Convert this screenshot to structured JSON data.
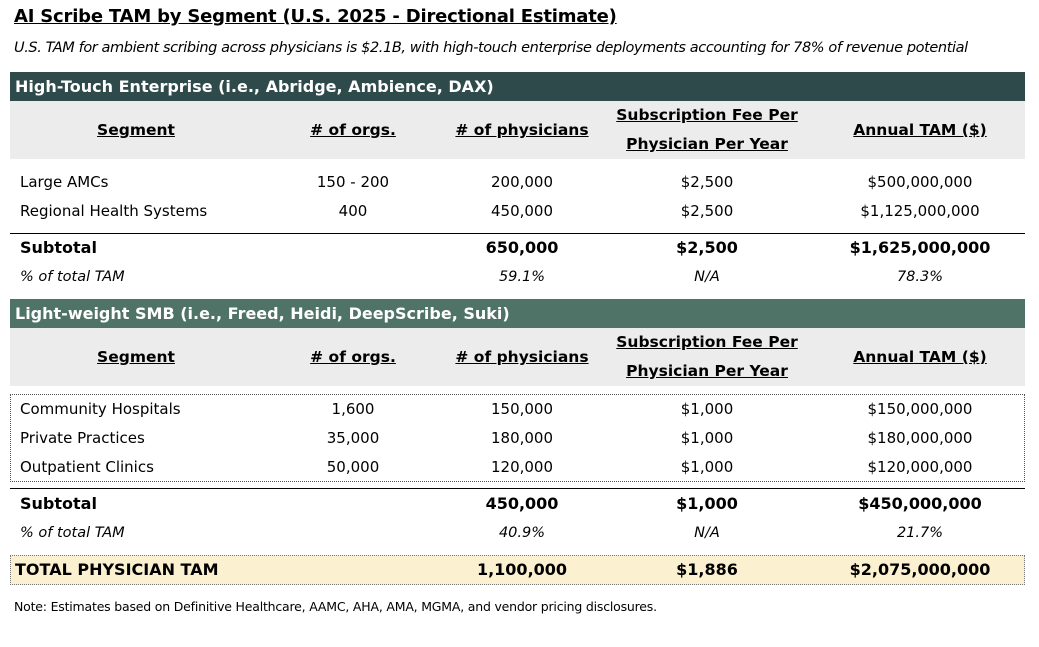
{
  "title": "AI Scribe TAM by Segment (U.S. 2025 - Directional Estimate)",
  "subtitle": "U.S. TAM for ambient scribing across physicians is $2.1B, with high-touch enterprise deployments accounting for 78% of revenue potential",
  "columns": {
    "segment": "Segment",
    "orgs": "# of orgs.",
    "physicians": "# of physicians",
    "fee_line1": "Subscription Fee Per",
    "fee_line2": "Physician Per Year",
    "tam": "Annual TAM ($)"
  },
  "enterprise": {
    "band": "High-Touch Enterprise (i.e., Abridge, Ambience, DAX)",
    "rows": [
      {
        "segment": "Large AMCs",
        "orgs": "150 - 200",
        "physicians": "200,000",
        "fee": "$2,500",
        "tam": "$500,000,000"
      },
      {
        "segment": "Regional Health Systems",
        "orgs": "400",
        "physicians": "450,000",
        "fee": "$2,500",
        "tam": "$1,125,000,000"
      }
    ],
    "subtotal": {
      "label": "Subtotal",
      "physicians": "650,000",
      "fee": "$2,500",
      "tam": "$1,625,000,000"
    },
    "pct": {
      "label": "% of total TAM",
      "physicians": "59.1%",
      "fee": "N/A",
      "tam": "78.3%"
    }
  },
  "smb": {
    "band": "Light-weight SMB (i.e., Freed, Heidi, DeepScribe, Suki)",
    "rows": [
      {
        "segment": "Community Hospitals",
        "orgs": "1,600",
        "physicians": "150,000",
        "fee": "$1,000",
        "tam": "$150,000,000"
      },
      {
        "segment": "Private Practices",
        "orgs": "35,000",
        "physicians": "180,000",
        "fee": "$1,000",
        "tam": "$180,000,000"
      },
      {
        "segment": "Outpatient Clinics",
        "orgs": "50,000",
        "physicians": "120,000",
        "fee": "$1,000",
        "tam": "$120,000,000"
      }
    ],
    "subtotal": {
      "label": "Subtotal",
      "physicians": "450,000",
      "fee": "$1,000",
      "tam": "$450,000,000"
    },
    "pct": {
      "label": "% of total TAM",
      "physicians": "40.9%",
      "fee": "N/A",
      "tam": "21.7%"
    }
  },
  "total": {
    "label": "TOTAL PHYSICIAN TAM",
    "physicians": "1,100,000",
    "fee": "$1,886",
    "tam": "$2,075,000,000"
  },
  "note": "Note: Estimates based on Definitive Healthcare, AAMC, AHA, AMA, MGMA, and vendor pricing disclosures."
}
